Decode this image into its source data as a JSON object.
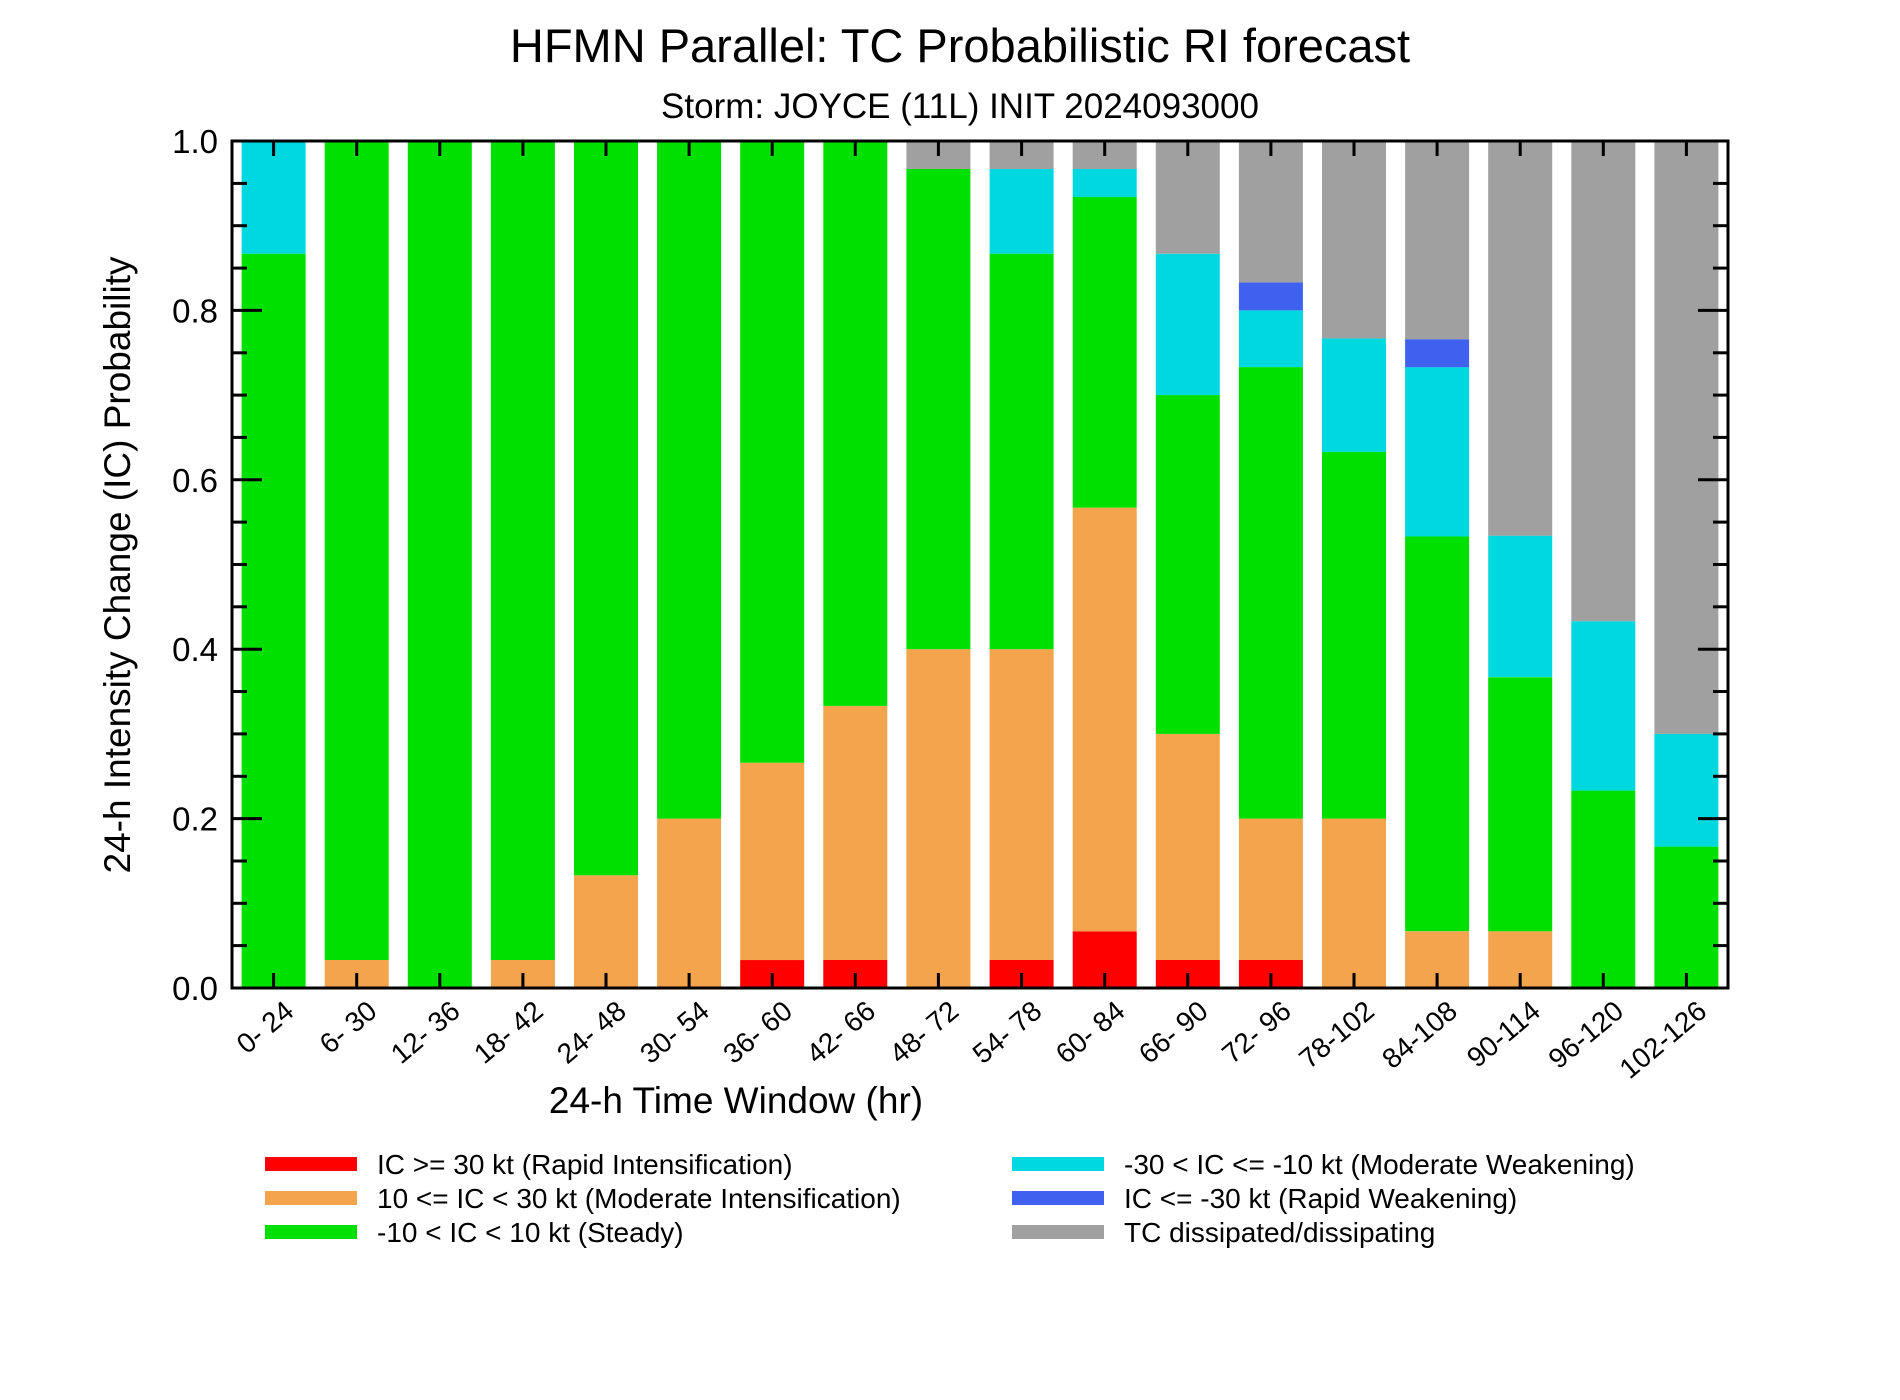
{
  "chart_data": {
    "type": "bar",
    "stacked": true,
    "title": "HFMN Parallel: TC Probabilistic RI forecast",
    "subtitle": "Storm: JOYCE (11L) INIT 2024093000",
    "xlabel": "24-h Time Window (hr)",
    "ylabel": "24-h Intensity Change (IC) Probability",
    "ylim": [
      0,
      1
    ],
    "yticks": [
      "0.0",
      "0.2",
      "0.4",
      "0.6",
      "0.8",
      "1.0"
    ],
    "categories": [
      "0- 24",
      "6- 30",
      "12- 36",
      "18- 42",
      "24- 48",
      "30- 54",
      "36- 60",
      "42- 66",
      "48- 72",
      "54- 78",
      "60- 84",
      "66- 90",
      "72- 96",
      "78-102",
      "84-108",
      "90-114",
      "96-120",
      "102-126"
    ],
    "series": [
      {
        "name": "IC >= 30 kt (Rapid Intensification)",
        "color": "#ff0000",
        "values": [
          0,
          0,
          0,
          0,
          0,
          0,
          0.033,
          0.033,
          0,
          0.033,
          0.067,
          0.033,
          0.033,
          0,
          0,
          0,
          0,
          0
        ]
      },
      {
        "name": "10 <= IC < 30 kt (Moderate Intensification)",
        "color": "#f4a44c",
        "values": [
          0,
          0.033,
          0,
          0.033,
          0.133,
          0.2,
          0.233,
          0.3,
          0.4,
          0.367,
          0.5,
          0.267,
          0.167,
          0.2,
          0.067,
          0.067,
          0,
          0
        ]
      },
      {
        "name": "-10 < IC < 10 kt (Steady)",
        "color": "#00e000",
        "values": [
          0.867,
          0.967,
          1.0,
          0.967,
          0.867,
          0.8,
          0.734,
          0.667,
          0.567,
          0.467,
          0.367,
          0.4,
          0.533,
          0.433,
          0.466,
          0.3,
          0.233,
          0.167
        ]
      },
      {
        "name": "-30 < IC <= -10 kt (Moderate Weakening)",
        "color": "#00d8e0",
        "values": [
          0.133,
          0,
          0,
          0,
          0,
          0,
          0,
          0,
          0,
          0.1,
          0.033,
          0.167,
          0.067,
          0.134,
          0.2,
          0.167,
          0.2,
          0.133
        ]
      },
      {
        "name": "IC <= -30 kt (Rapid Weakening)",
        "color": "#4060f0",
        "values": [
          0,
          0,
          0,
          0,
          0,
          0,
          0,
          0,
          0,
          0,
          0,
          0,
          0.033,
          0,
          0.033,
          0,
          0,
          0
        ]
      },
      {
        "name": "TC dissipated/dissipating",
        "color": "#a0a0a0",
        "values": [
          0,
          0,
          0,
          0,
          0,
          0,
          0,
          0,
          0.033,
          0.033,
          0.033,
          0.133,
          0.167,
          0.233,
          0.234,
          0.466,
          0.567,
          0.7
        ]
      }
    ],
    "legend": {
      "placement": "bottom",
      "columns": [
        [
          "IC >= 30 kt (Rapid Intensification)",
          "10 <= IC < 30 kt (Moderate Intensification)",
          "-10 < IC < 10 kt (Steady)"
        ],
        [
          "-30 < IC <= -10 kt (Moderate Weakening)",
          "IC <= -30 kt (Rapid Weakening)",
          "TC dissipated/dissipating"
        ]
      ]
    },
    "grid": false
  }
}
